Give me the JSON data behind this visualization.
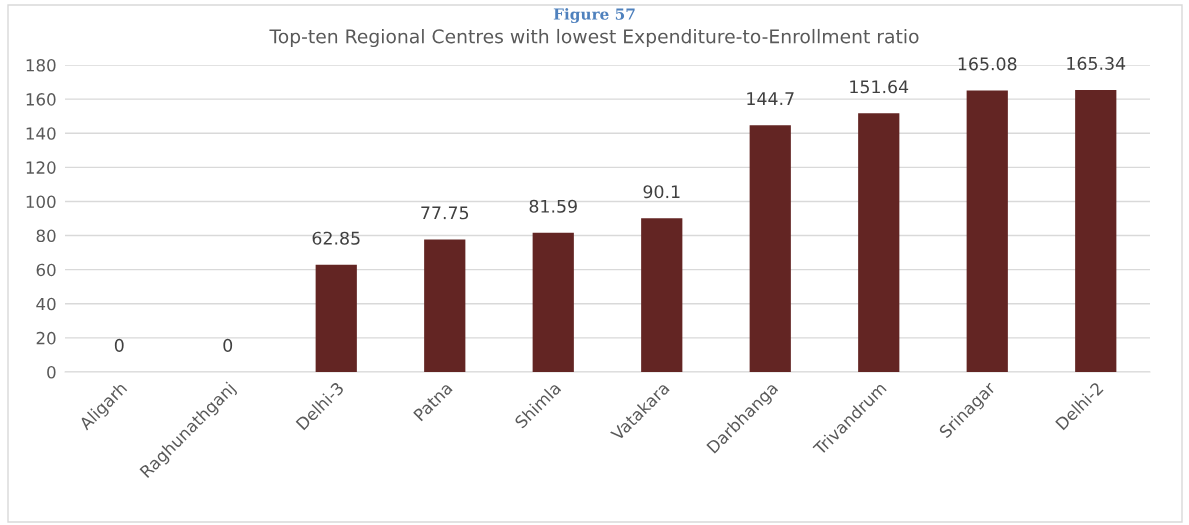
{
  "chart_data": {
    "type": "bar",
    "title": "Top-ten Regional Centres with lowest Expenditure-to-Enrollment ratio",
    "annotations": [
      "Figure 57"
    ],
    "categories": [
      "Aligarh",
      "Raghunathganj",
      "Delhi-3",
      "Patna",
      "Shimla",
      "Vatakara",
      "Darbhanga",
      "Trivandrum",
      "Srinagar",
      "Delhi-2"
    ],
    "values": [
      0,
      0,
      62.85,
      77.75,
      81.59,
      90.1,
      144.7,
      151.64,
      165.08,
      165.34
    ],
    "color": "#632523",
    "ylim": [
      0,
      180
    ],
    "yticks": [
      0,
      20,
      40,
      60,
      80,
      100,
      120,
      140,
      160,
      180
    ],
    "grid": "y",
    "data_labels": true,
    "legend": false
  }
}
